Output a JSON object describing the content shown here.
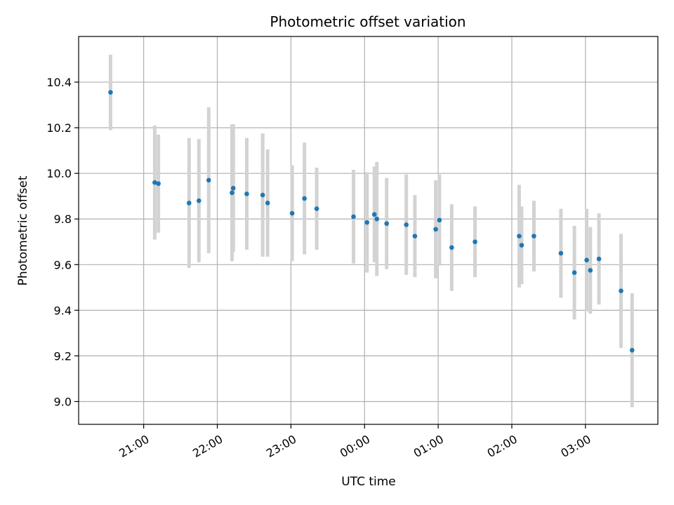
{
  "chart_data": {
    "type": "scatter",
    "title": "Photometric offset variation",
    "xlabel": "UTC time",
    "ylabel": "Photometric offset",
    "xlim": [
      "20:07",
      "03:59"
    ],
    "ylim": [
      8.9,
      10.6
    ],
    "x_ticks": [
      "21:00",
      "22:00",
      "23:00",
      "00:00",
      "01:00",
      "02:00",
      "03:00"
    ],
    "y_ticks": [
      "9.0",
      "9.2",
      "9.4",
      "9.6",
      "9.8",
      "10.0",
      "10.2",
      "10.4"
    ],
    "grid": true,
    "colors": {
      "points": "#1f77b4",
      "errorbars": "#d3d3d3",
      "grid": "#b0b0b0"
    },
    "series": [
      {
        "x": [
          "20:33",
          "21:09",
          "21:12",
          "21:37",
          "21:45",
          "21:53",
          "22:12",
          "22:13",
          "22:24",
          "22:37",
          "22:41",
          "23:01",
          "23:11",
          "23:21",
          "23:51",
          "00:02",
          "00:08",
          "00:10",
          "00:18",
          "00:34",
          "00:41",
          "00:58",
          "01:01",
          "01:11",
          "01:30",
          "02:06",
          "02:08",
          "02:18",
          "02:40",
          "02:51",
          "03:01",
          "03:04",
          "03:11",
          "03:29",
          "03:38"
        ],
        "y": [
          10.355,
          9.96,
          9.955,
          9.87,
          9.88,
          9.97,
          9.915,
          9.935,
          9.91,
          9.905,
          9.87,
          9.825,
          9.89,
          9.845,
          9.81,
          9.785,
          9.82,
          9.8,
          9.78,
          9.775,
          9.725,
          9.755,
          9.795,
          9.675,
          9.7,
          9.725,
          9.685,
          9.725,
          9.65,
          9.565,
          9.62,
          9.575,
          9.625,
          9.485,
          9.225
        ],
        "yerr": [
          0.165,
          0.25,
          0.215,
          0.285,
          0.27,
          0.32,
          0.3,
          0.28,
          0.245,
          0.27,
          0.235,
          0.21,
          0.245,
          0.18,
          0.205,
          0.22,
          0.21,
          0.25,
          0.2,
          0.22,
          0.18,
          0.215,
          0.2,
          0.19,
          0.155,
          0.225,
          0.17,
          0.155,
          0.195,
          0.205,
          0.225,
          0.19,
          0.2,
          0.25,
          0.25
        ]
      }
    ]
  }
}
